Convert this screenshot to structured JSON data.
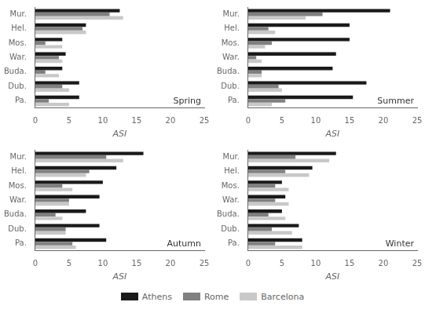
{
  "chart_data": [
    {
      "type": "bar",
      "orientation": "horizontal",
      "annotation": "Spring",
      "xlabel": "ASI",
      "categories": [
        "Mur.",
        "Hel.",
        "Mos.",
        "War.",
        "Buda.",
        "Dub.",
        "Pa."
      ],
      "series": [
        {
          "name": "Athens",
          "color": "#1a1a1a",
          "values": [
            12.5,
            7.5,
            4.0,
            4.5,
            4.0,
            6.5,
            6.5
          ]
        },
        {
          "name": "Rome",
          "color": "#808080",
          "values": [
            11.0,
            7.0,
            1.5,
            3.5,
            1.5,
            4.0,
            2.0
          ]
        },
        {
          "name": "Barcelona",
          "color": "#c8c8c8",
          "values": [
            13.0,
            7.5,
            4.0,
            4.0,
            3.5,
            5.0,
            5.0
          ]
        }
      ],
      "xlim": [
        0,
        25
      ],
      "xticks": [
        0,
        5,
        10,
        15,
        20,
        25
      ],
      "grid": false,
      "legend": "bottom"
    },
    {
      "type": "bar",
      "orientation": "horizontal",
      "annotation": "Summer",
      "xlabel": "ASI",
      "categories": [
        "Mur.",
        "Hel.",
        "Mos.",
        "War.",
        "Buda.",
        "Dub.",
        "Pa."
      ],
      "series": [
        {
          "name": "Athens",
          "color": "#1a1a1a",
          "values": [
            21.0,
            15.0,
            15.0,
            13.0,
            12.5,
            17.5,
            15.5
          ]
        },
        {
          "name": "Rome",
          "color": "#808080",
          "values": [
            11.0,
            3.0,
            3.5,
            1.2,
            2.0,
            4.5,
            5.5
          ]
        },
        {
          "name": "Barcelona",
          "color": "#c8c8c8",
          "values": [
            8.5,
            4.0,
            2.5,
            2.0,
            2.0,
            5.0,
            3.5
          ]
        }
      ],
      "xlim": [
        0,
        25
      ],
      "xticks": [
        0,
        5,
        10,
        15,
        20,
        25
      ],
      "grid": false,
      "legend": "bottom"
    },
    {
      "type": "bar",
      "orientation": "horizontal",
      "annotation": "Autumn",
      "xlabel": "ASI",
      "categories": [
        "Mur.",
        "Hel.",
        "Mos.",
        "War.",
        "Buda.",
        "Dub.",
        "Pa."
      ],
      "series": [
        {
          "name": "Athens",
          "color": "#1a1a1a",
          "values": [
            16.0,
            12.0,
            10.0,
            9.5,
            7.5,
            9.5,
            10.5
          ]
        },
        {
          "name": "Rome",
          "color": "#808080",
          "values": [
            10.5,
            8.0,
            4.0,
            5.0,
            3.0,
            4.5,
            5.5
          ]
        },
        {
          "name": "Barcelona",
          "color": "#c8c8c8",
          "values": [
            13.0,
            7.5,
            5.5,
            5.0,
            4.0,
            4.5,
            6.0
          ]
        }
      ],
      "xlim": [
        0,
        25
      ],
      "xticks": [
        0,
        5,
        10,
        15,
        20,
        25
      ],
      "grid": false,
      "legend": "bottom"
    },
    {
      "type": "bar",
      "orientation": "horizontal",
      "annotation": "Winter",
      "xlabel": "ASI",
      "categories": [
        "Mur.",
        "Hel.",
        "Mos.",
        "War.",
        "Buda.",
        "Dub.",
        "Pa."
      ],
      "series": [
        {
          "name": "Athens",
          "color": "#1a1a1a",
          "values": [
            13.0,
            9.5,
            5.0,
            5.5,
            5.0,
            7.5,
            8.0
          ]
        },
        {
          "name": "Rome",
          "color": "#808080",
          "values": [
            7.0,
            5.5,
            4.0,
            4.0,
            3.0,
            3.5,
            4.0
          ]
        },
        {
          "name": "Barcelona",
          "color": "#c8c8c8",
          "values": [
            12.0,
            9.0,
            6.0,
            6.0,
            5.5,
            6.5,
            8.0
          ]
        }
      ],
      "xlim": [
        0,
        25
      ],
      "xticks": [
        0,
        5,
        10,
        15,
        20,
        25
      ],
      "grid": false,
      "legend": "bottom"
    }
  ]
}
